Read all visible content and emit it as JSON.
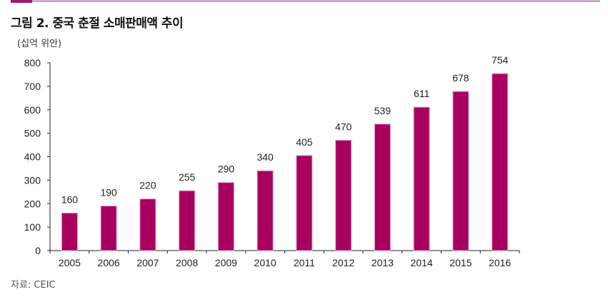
{
  "title": "그림 2. 중국 춘절 소매판매액 추이",
  "source": "자료: CEIC",
  "chart_data": {
    "type": "bar",
    "title": "그림 2. 중국 춘절 소매판매액 추이",
    "ylabel": "(십억 위안)",
    "xlabel": "",
    "categories": [
      "2005",
      "2006",
      "2007",
      "2008",
      "2009",
      "2010",
      "2011",
      "2012",
      "2013",
      "2014",
      "2015",
      "2016"
    ],
    "values": [
      160,
      190,
      220,
      255,
      290,
      340,
      405,
      470,
      539,
      611,
      678,
      754
    ],
    "ylim": [
      0,
      800
    ],
    "yticks": [
      0,
      100,
      200,
      300,
      400,
      500,
      600,
      700,
      800
    ],
    "grid": false,
    "bar_color": "#a8005f",
    "data_labels": true
  }
}
